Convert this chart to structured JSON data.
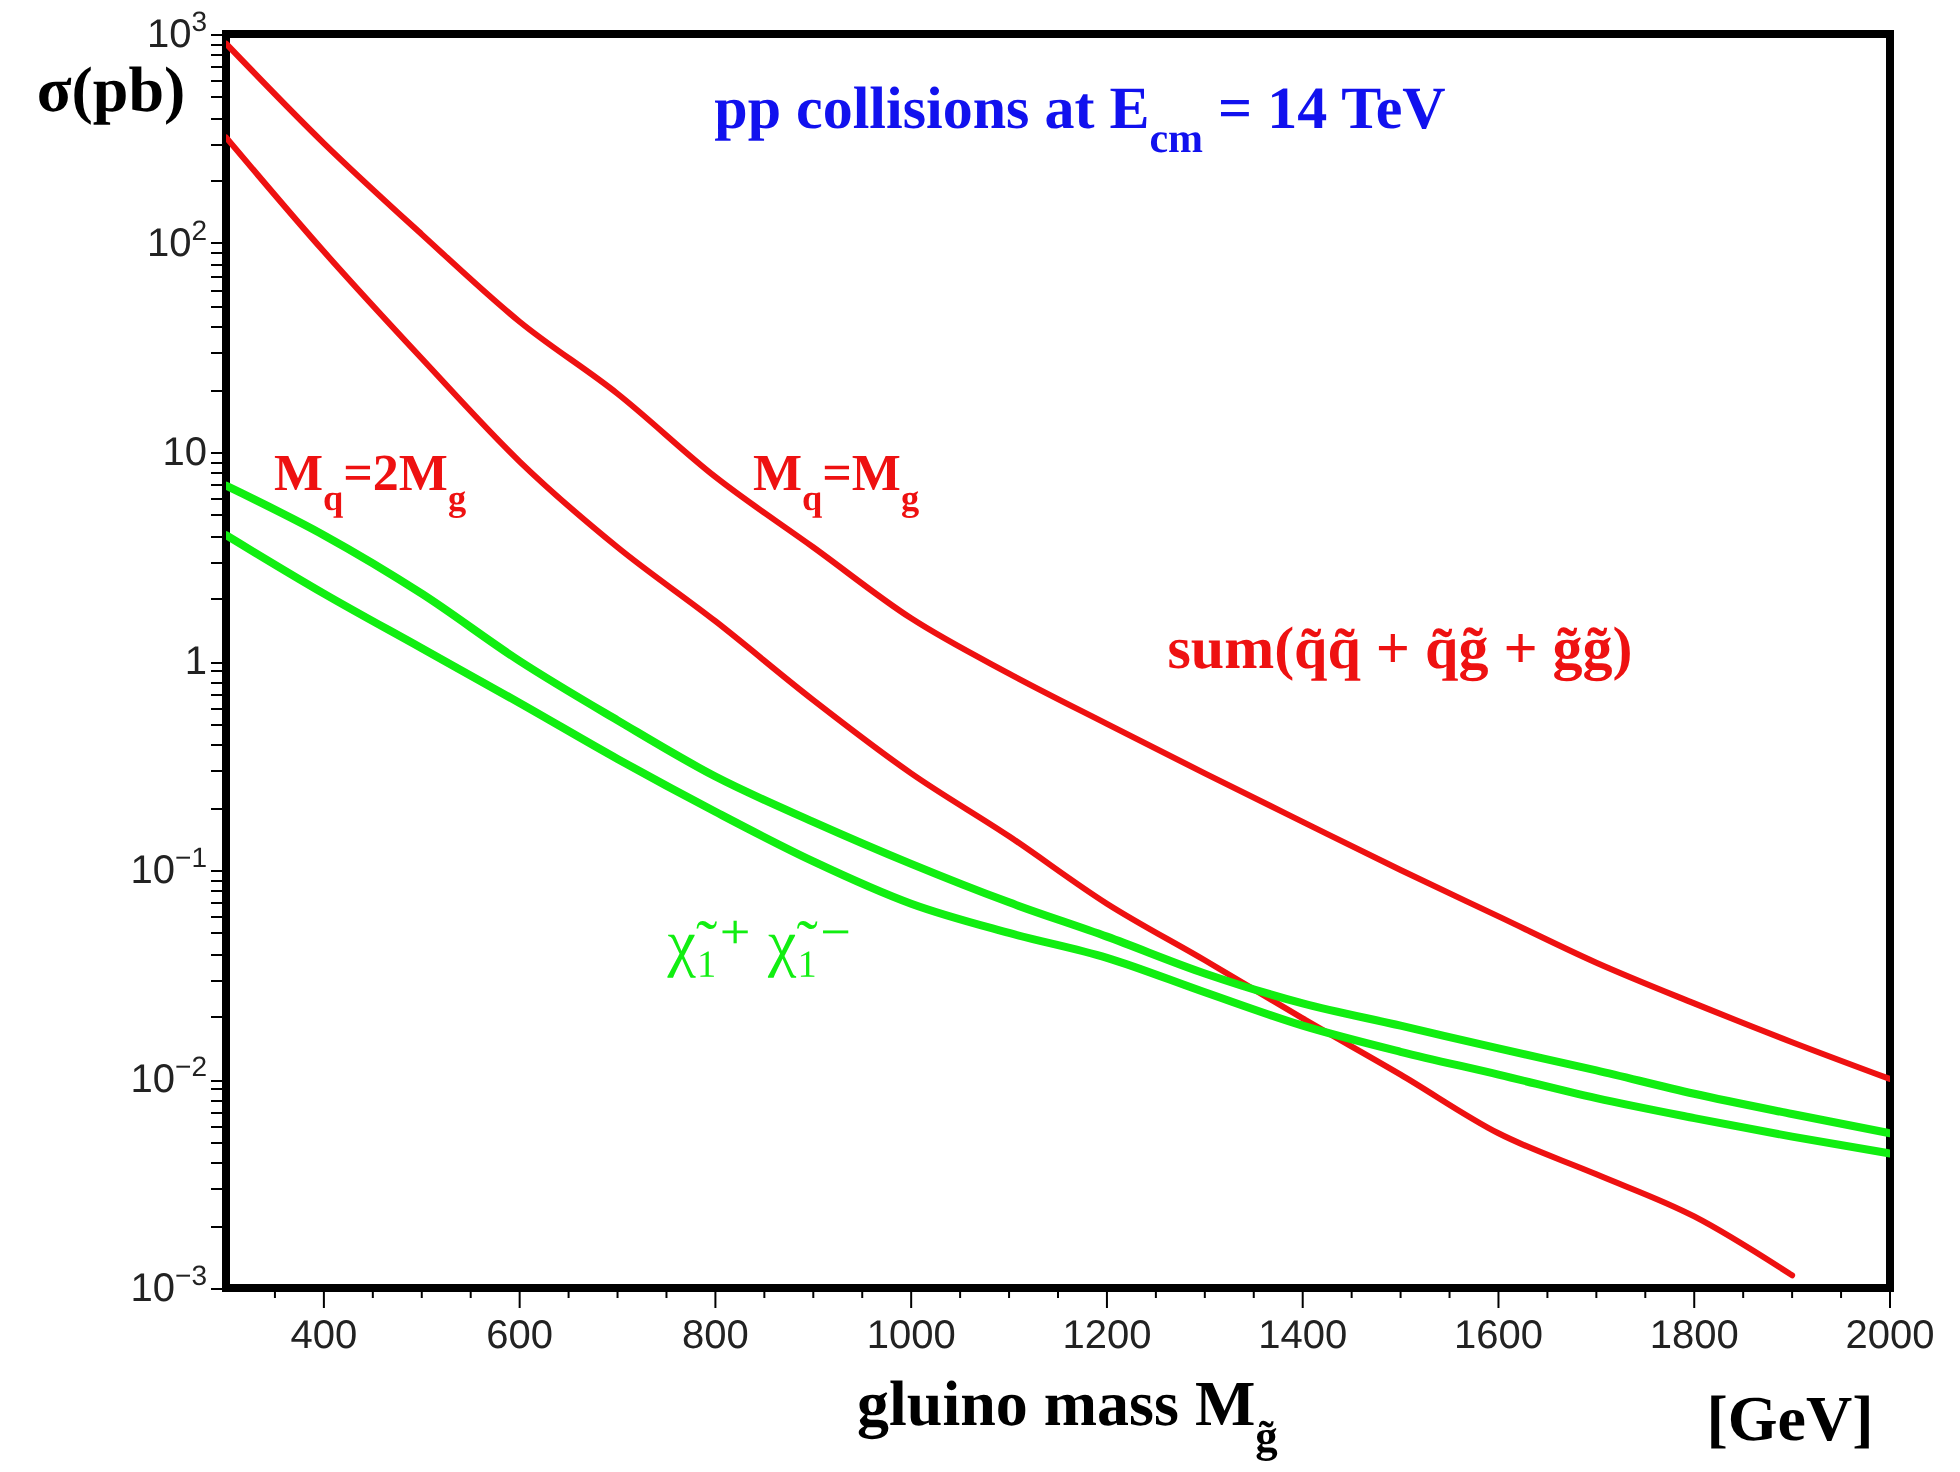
{
  "chart_data": {
    "type": "line",
    "title": "pp collisions at E$_{cm}$ = 14 TeV",
    "xlabel": "gluino mass M$_{g̃}$",
    "ylabel": "σ(pb)",
    "log": "y",
    "grid": false,
    "annotations": [
      "sum(q̃q̃ + q̃g̃ + g̃g̃)",
      "χ̃₁⁺ χ̃₁⁻",
      "[GeV]"
    ],
    "x": [
      300,
      400,
      500,
      600,
      700,
      800,
      900,
      1000,
      1100,
      1200,
      1300,
      1400,
      1500,
      1600,
      1700,
      1800,
      1900,
      2000
    ],
    "xlim": [
      300,
      2000
    ],
    "xticks": [
      {
        "value": 350,
        "label": null
      },
      400,
      {
        "value": 450,
        "label": null
      },
      {
        "value": 500,
        "label": null
      },
      {
        "value": 550,
        "label": null
      },
      600,
      {
        "value": 650,
        "label": null
      },
      {
        "value": 700,
        "label": null
      },
      {
        "value": 750,
        "label": null
      },
      800,
      {
        "value": 850,
        "label": null
      },
      {
        "value": 900,
        "label": null
      },
      {
        "value": 950,
        "label": null
      },
      1000,
      {
        "value": 1050,
        "label": null
      },
      {
        "value": 1100,
        "label": null
      },
      {
        "value": 1150,
        "label": null
      },
      1200,
      {
        "value": 1250,
        "label": null
      },
      {
        "value": 1300,
        "label": null
      },
      {
        "value": 1350,
        "label": null
      },
      1400,
      {
        "value": 1450,
        "label": null
      },
      {
        "value": 1500,
        "label": null
      },
      {
        "value": 1550,
        "label": null
      },
      1600,
      {
        "value": 1650,
        "label": null
      },
      {
        "value": 1700,
        "label": null
      },
      {
        "value": 1750,
        "label": null
      },
      1800,
      {
        "value": 1850,
        "label": null
      },
      {
        "value": 1900,
        "label": null
      },
      {
        "value": 1950,
        "label": null
      },
      2000
    ],
    "ylim": [
      0.001,
      1000
    ],
    "yticks": [
      {
        "value": 0.001,
        "label": "10$^{−3}$"
      },
      {
        "value": 0.002,
        "label": null
      },
      {
        "value": 0.003,
        "label": null
      },
      {
        "value": 0.004,
        "label": null
      },
      {
        "value": 0.005,
        "label": null
      },
      {
        "value": 0.006,
        "label": null
      },
      {
        "value": 0.007,
        "label": null
      },
      {
        "value": 0.008,
        "label": null
      },
      {
        "value": 0.009,
        "label": null
      },
      {
        "value": 0.01,
        "label": "10$^{−2}$"
      },
      {
        "value": 0.02,
        "label": null
      },
      {
        "value": 0.03,
        "label": null
      },
      {
        "value": 0.04,
        "label": null
      },
      {
        "value": 0.05,
        "label": null
      },
      {
        "value": 0.06,
        "label": null
      },
      {
        "value": 0.07,
        "label": null
      },
      {
        "value": 0.08,
        "label": null
      },
      {
        "value": 0.09,
        "label": null
      },
      {
        "value": 0.1,
        "label": "10$^{−1}$"
      },
      {
        "value": 0.2,
        "label": null
      },
      {
        "value": 0.3,
        "label": null
      },
      {
        "value": 0.4,
        "label": null
      },
      {
        "value": 0.5,
        "label": null
      },
      {
        "value": 0.6,
        "label": null
      },
      {
        "value": 0.7,
        "label": null
      },
      {
        "value": 0.8,
        "label": null
      },
      {
        "value": 0.9,
        "label": null
      },
      {
        "value": 1,
        "label": "1"
      },
      {
        "value": 2,
        "label": null
      },
      {
        "value": 3,
        "label": null
      },
      {
        "value": 4,
        "label": null
      },
      {
        "value": 5,
        "label": null
      },
      {
        "value": 6,
        "label": null
      },
      {
        "value": 7,
        "label": null
      },
      {
        "value": 8,
        "label": null
      },
      {
        "value": 9,
        "label": null
      },
      {
        "value": 10,
        "label": "10"
      },
      {
        "value": 20,
        "label": null
      },
      {
        "value": 30,
        "label": null
      },
      {
        "value": 40,
        "label": null
      },
      {
        "value": 50,
        "label": null
      },
      {
        "value": 60,
        "label": null
      },
      {
        "value": 70,
        "label": null
      },
      {
        "value": 80,
        "label": null
      },
      {
        "value": 90,
        "label": null
      },
      {
        "value": 100,
        "label": "10$^{2}$"
      },
      {
        "value": 200,
        "label": null
      },
      {
        "value": 300,
        "label": null
      },
      {
        "value": 400,
        "label": null
      },
      {
        "value": 500,
        "label": null
      },
      {
        "value": 600,
        "label": null
      },
      {
        "value": 700,
        "label": null
      },
      {
        "value": 800,
        "label": null
      },
      {
        "value": 900,
        "label": null
      },
      {
        "value": 1000,
        "label": "10$^{3}$"
      }
    ],
    "series": [
      {
        "name": "M$_{q}$=M$_{g}$",
        "color": "#ee1111",
        "values": [
          900,
          300,
          110,
          42,
          19,
          7.6,
          3.5,
          1.6,
          0.87,
          0.5,
          0.29,
          0.17,
          0.1,
          0.06,
          0.036,
          0.023,
          0.015,
          0.01
        ]
      },
      {
        "name": "M$_{q}$=2M$_{g}$",
        "color": "#ee1111",
        "values": [
          320,
          91,
          28,
          9,
          3.5,
          1.55,
          0.65,
          0.29,
          0.145,
          0.069,
          0.037,
          0.0195,
          0.0105,
          0.0055,
          0.0035,
          0.0022,
          0.00115,
          null
        ]
      },
      {
        "color": "#11ee11",
        "values": [
          6.9,
          4,
          2.1,
          1,
          0.52,
          0.28,
          0.17,
          0.107,
          0.07,
          0.048,
          0.032,
          0.023,
          0.018,
          0.014,
          0.011,
          0.0085,
          0.0068,
          0.0055
        ]
      },
      {
        "color": "#11ee11",
        "values": [
          4,
          2.1,
          1.15,
          0.63,
          0.34,
          0.19,
          0.11,
          0.069,
          0.05,
          0.038,
          0.026,
          0.018,
          0.0135,
          0.0105,
          0.0081,
          0.0065,
          0.0053,
          0.0044
        ]
      }
    ]
  }
}
